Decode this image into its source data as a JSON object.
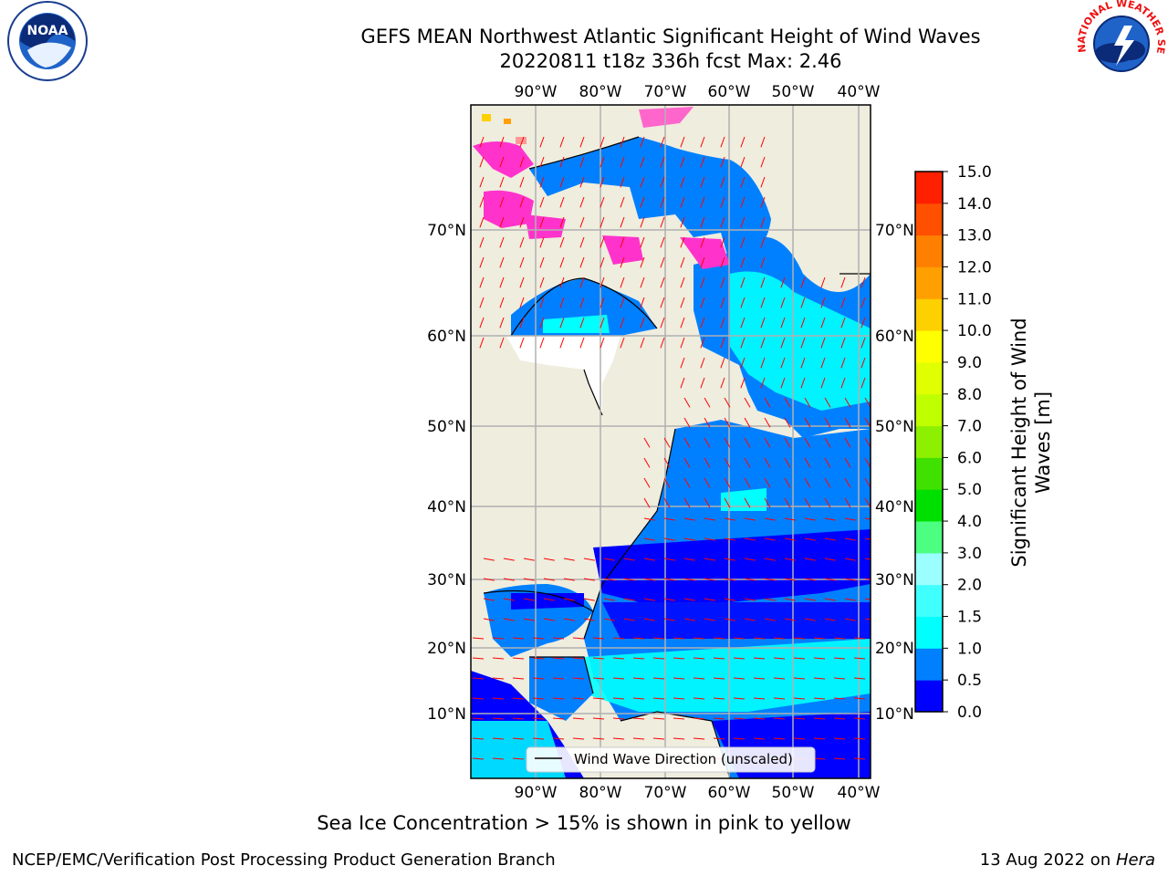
{
  "title": {
    "line1": "GEFS MEAN Northwest Atlantic Significant Height of Wind Waves",
    "line2": "20220811 t18z 336h fcst   Max: 2.46"
  },
  "logos": {
    "left": {
      "icon": "noaa-logo",
      "text": "NOAA"
    },
    "right": {
      "icon": "national-weather-service-logo",
      "text": "NATIONAL WEATHER SERVICE"
    }
  },
  "map": {
    "lon_labels": [
      "90°W",
      "80°W",
      "70°W",
      "60°W",
      "50°W",
      "40°W"
    ],
    "lat_labels": [
      "70°N",
      "60°N",
      "50°N",
      "40°N",
      "30°N",
      "20°N",
      "10°N"
    ],
    "legend": "Wind Wave Direction (unscaled)",
    "colors": {
      "land": "#efedde",
      "ocean_dark": "#0000ff",
      "ocean_mid": "#0080ff",
      "ocean_light": "#00ffff",
      "ice_pink": "#ff33cc",
      "arrows": "#ff0000",
      "grid": "#b0b0b0"
    }
  },
  "colorbar": {
    "label": "Significant Height of Wind Waves [m]",
    "ticks": [
      "0.0",
      "0.5",
      "1.0",
      "1.5",
      "2.0",
      "3.0",
      "4.0",
      "5.0",
      "6.0",
      "7.0",
      "8.0",
      "9.0",
      "10.0",
      "11.0",
      "12.0",
      "13.0",
      "14.0",
      "15.0"
    ],
    "colors": [
      "#0000ff",
      "#0080ff",
      "#00ffff",
      "#40ffff",
      "#9bffff",
      "#4cff80",
      "#00e000",
      "#40e000",
      "#8cf000",
      "#c0ff00",
      "#e0ff00",
      "#ffff00",
      "#ffd000",
      "#ffa000",
      "#ff8000",
      "#ff5000",
      "#ff2000"
    ]
  },
  "note": "Sea Ice Concentration > 15% is shown in pink to yellow",
  "footer": {
    "left": "NCEP/EMC/Verification Post Processing Product Generation Branch",
    "right_prefix": "13 Aug 2022 on ",
    "right_italic": "Hera"
  }
}
